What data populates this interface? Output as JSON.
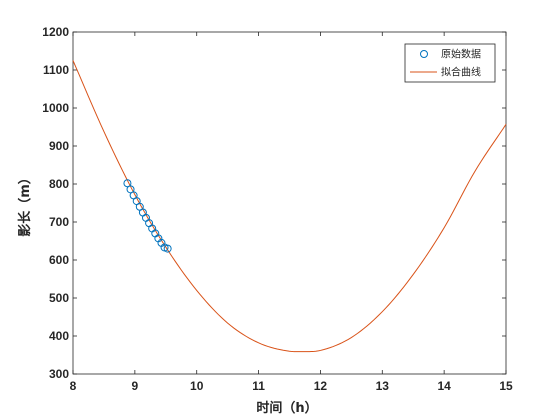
{
  "chart_data": {
    "type": "scatter",
    "xlabel": "时间（h）",
    "ylabel": "影长（m）",
    "xlim": [
      8,
      15
    ],
    "ylim": [
      300,
      1200
    ],
    "xticks": [
      8,
      9,
      10,
      11,
      12,
      13,
      14,
      15
    ],
    "yticks": [
      300,
      400,
      500,
      600,
      700,
      800,
      900,
      1000,
      1100,
      1200
    ],
    "grid": false,
    "legend_position": "top-right",
    "series": [
      {
        "name": "原始数据",
        "kind": "scatter",
        "marker": "open-circle",
        "color": "#0072BD",
        "x": [
          8.88,
          8.93,
          8.98,
          9.03,
          9.08,
          9.13,
          9.18,
          9.23,
          9.28,
          9.33,
          9.38,
          9.43,
          9.48,
          9.53
        ],
        "y": [
          802,
          786,
          770,
          755,
          740,
          725,
          711,
          697,
          683,
          670,
          657,
          645,
          633,
          630
        ]
      },
      {
        "name": "拟合曲线",
        "kind": "line",
        "color": "#D95319",
        "x": [
          8.0,
          8.5,
          9.0,
          9.5,
          10.0,
          10.5,
          11.0,
          11.5,
          11.75,
          12.0,
          12.5,
          13.0,
          13.5,
          14.0,
          14.5,
          15.0
        ],
        "y": [
          1125,
          938,
          772,
          634,
          520,
          434,
          382,
          360,
          359,
          362,
          396,
          464,
          562,
          685,
          834,
          957
        ]
      }
    ]
  }
}
